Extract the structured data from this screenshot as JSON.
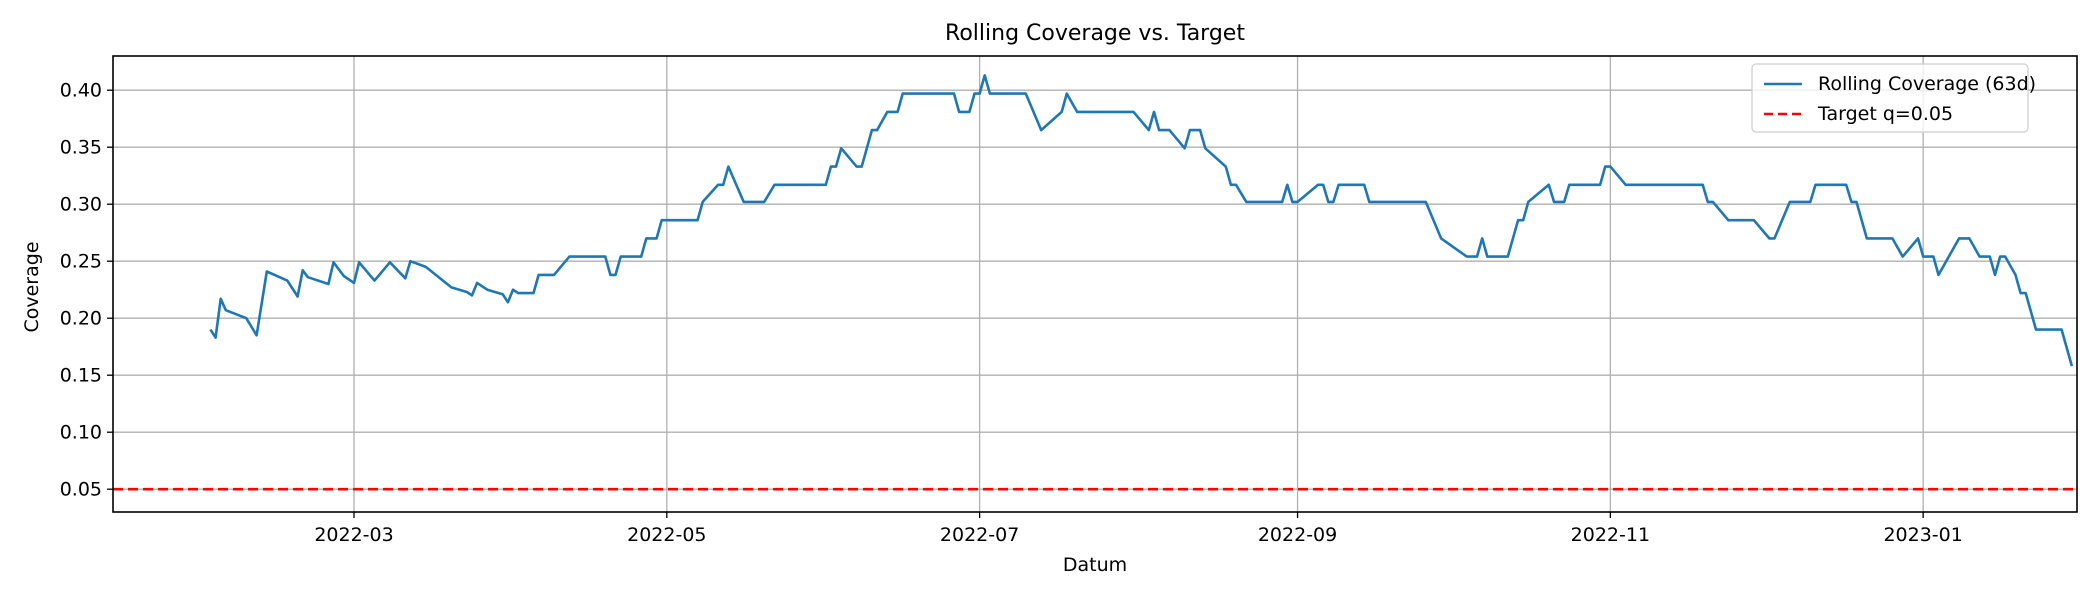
{
  "chart_data": {
    "type": "line",
    "title": "Rolling Coverage vs. Target",
    "xlabel": "Datum",
    "ylabel": "Coverage",
    "xlim": [
      "2022-01-13",
      "2023-01-31"
    ],
    "ylim": [
      0.03,
      0.43
    ],
    "xticks": [
      "2022-03-01",
      "2022-05-01",
      "2022-07-01",
      "2022-09-01",
      "2022-11-01",
      "2023-01-01"
    ],
    "xtick_labels": [
      "2022-03",
      "2022-05",
      "2022-07",
      "2022-09",
      "2022-11",
      "2023-01"
    ],
    "yticks": [
      0.05,
      0.1,
      0.15,
      0.2,
      0.25,
      0.3,
      0.35,
      0.4
    ],
    "ytick_labels": [
      "0.05",
      "0.10",
      "0.15",
      "0.20",
      "0.25",
      "0.30",
      "0.35",
      "0.40"
    ],
    "grid": true,
    "legend_position": "top-right",
    "series": [
      {
        "name": "Rolling Coverage (63d)",
        "color": "#1f77b4",
        "style": "solid",
        "points": [
          [
            "2022-02-01",
            0.19
          ],
          [
            "2022-02-02",
            0.183
          ],
          [
            "2022-02-03",
            0.217
          ],
          [
            "2022-02-04",
            0.207
          ],
          [
            "2022-02-08",
            0.2
          ],
          [
            "2022-02-10",
            0.185
          ],
          [
            "2022-02-12",
            0.241
          ],
          [
            "2022-02-16",
            0.233
          ],
          [
            "2022-02-18",
            0.219
          ],
          [
            "2022-02-19",
            0.242
          ],
          [
            "2022-02-20",
            0.236
          ],
          [
            "2022-02-24",
            0.23
          ],
          [
            "2022-02-25",
            0.249
          ],
          [
            "2022-02-27",
            0.237
          ],
          [
            "2022-03-01",
            0.231
          ],
          [
            "2022-03-02",
            0.249
          ],
          [
            "2022-03-05",
            0.233
          ],
          [
            "2022-03-08",
            0.249
          ],
          [
            "2022-03-11",
            0.235
          ],
          [
            "2022-03-12",
            0.25
          ],
          [
            "2022-03-15",
            0.245
          ],
          [
            "2022-03-20",
            0.227
          ],
          [
            "2022-03-23",
            0.223
          ],
          [
            "2022-03-24",
            0.22
          ],
          [
            "2022-03-25",
            0.231
          ],
          [
            "2022-03-27",
            0.225
          ],
          [
            "2022-03-30",
            0.221
          ],
          [
            "2022-03-31",
            0.214
          ],
          [
            "2022-04-01",
            0.225
          ],
          [
            "2022-04-02",
            0.222
          ],
          [
            "2022-04-05",
            0.222
          ],
          [
            "2022-04-06",
            0.238
          ],
          [
            "2022-04-09",
            0.238
          ],
          [
            "2022-04-12",
            0.254
          ],
          [
            "2022-04-19",
            0.254
          ],
          [
            "2022-04-20",
            0.238
          ],
          [
            "2022-04-21",
            0.238
          ],
          [
            "2022-04-22",
            0.254
          ],
          [
            "2022-04-26",
            0.254
          ],
          [
            "2022-04-27",
            0.27
          ],
          [
            "2022-04-29",
            0.27
          ],
          [
            "2022-04-30",
            0.286
          ],
          [
            "2022-05-07",
            0.286
          ],
          [
            "2022-05-08",
            0.302
          ],
          [
            "2022-05-11",
            0.317
          ],
          [
            "2022-05-12",
            0.317
          ],
          [
            "2022-05-13",
            0.333
          ],
          [
            "2022-05-16",
            0.302
          ],
          [
            "2022-05-20",
            0.302
          ],
          [
            "2022-05-22",
            0.317
          ],
          [
            "2022-05-31",
            0.317
          ],
          [
            "2022-06-01",
            0.317
          ],
          [
            "2022-06-02",
            0.333
          ],
          [
            "2022-06-03",
            0.333
          ],
          [
            "2022-06-04",
            0.349
          ],
          [
            "2022-06-07",
            0.333
          ],
          [
            "2022-06-08",
            0.333
          ],
          [
            "2022-06-10",
            0.365
          ],
          [
            "2022-06-11",
            0.365
          ],
          [
            "2022-06-13",
            0.381
          ],
          [
            "2022-06-15",
            0.381
          ],
          [
            "2022-06-16",
            0.397
          ],
          [
            "2022-06-26",
            0.397
          ],
          [
            "2022-06-27",
            0.381
          ],
          [
            "2022-06-29",
            0.381
          ],
          [
            "2022-06-30",
            0.397
          ],
          [
            "2022-07-01",
            0.397
          ],
          [
            "2022-07-02",
            0.413
          ],
          [
            "2022-07-03",
            0.397
          ],
          [
            "2022-07-10",
            0.397
          ],
          [
            "2022-07-13",
            0.365
          ],
          [
            "2022-07-17",
            0.381
          ],
          [
            "2022-07-18",
            0.397
          ],
          [
            "2022-07-20",
            0.381
          ],
          [
            "2022-07-31",
            0.381
          ],
          [
            "2022-08-03",
            0.365
          ],
          [
            "2022-08-04",
            0.381
          ],
          [
            "2022-08-05",
            0.365
          ],
          [
            "2022-08-07",
            0.365
          ],
          [
            "2022-08-10",
            0.349
          ],
          [
            "2022-08-11",
            0.365
          ],
          [
            "2022-08-13",
            0.365
          ],
          [
            "2022-08-14",
            0.349
          ],
          [
            "2022-08-18",
            0.333
          ],
          [
            "2022-08-19",
            0.317
          ],
          [
            "2022-08-20",
            0.317
          ],
          [
            "2022-08-22",
            0.302
          ],
          [
            "2022-08-29",
            0.302
          ],
          [
            "2022-08-30",
            0.317
          ],
          [
            "2022-08-31",
            0.302
          ],
          [
            "2022-09-01",
            0.302
          ],
          [
            "2022-09-05",
            0.317
          ],
          [
            "2022-09-06",
            0.317
          ],
          [
            "2022-09-07",
            0.302
          ],
          [
            "2022-09-08",
            0.302
          ],
          [
            "2022-09-09",
            0.317
          ],
          [
            "2022-09-14",
            0.317
          ],
          [
            "2022-09-15",
            0.302
          ],
          [
            "2022-09-26",
            0.302
          ],
          [
            "2022-09-29",
            0.27
          ],
          [
            "2022-10-04",
            0.254
          ],
          [
            "2022-10-06",
            0.254
          ],
          [
            "2022-10-07",
            0.27
          ],
          [
            "2022-10-08",
            0.254
          ],
          [
            "2022-10-12",
            0.254
          ],
          [
            "2022-10-14",
            0.286
          ],
          [
            "2022-10-15",
            0.286
          ],
          [
            "2022-10-16",
            0.302
          ],
          [
            "2022-10-20",
            0.317
          ],
          [
            "2022-10-21",
            0.302
          ],
          [
            "2022-10-23",
            0.302
          ],
          [
            "2022-10-24",
            0.317
          ],
          [
            "2022-10-30",
            0.317
          ],
          [
            "2022-10-31",
            0.333
          ],
          [
            "2022-11-01",
            0.333
          ],
          [
            "2022-11-04",
            0.317
          ],
          [
            "2022-11-19",
            0.317
          ],
          [
            "2022-11-20",
            0.302
          ],
          [
            "2022-11-21",
            0.302
          ],
          [
            "2022-11-24",
            0.286
          ],
          [
            "2022-11-29",
            0.286
          ],
          [
            "2022-12-02",
            0.27
          ],
          [
            "2022-12-03",
            0.27
          ],
          [
            "2022-12-06",
            0.302
          ],
          [
            "2022-12-10",
            0.302
          ],
          [
            "2022-12-11",
            0.317
          ],
          [
            "2022-12-17",
            0.317
          ],
          [
            "2022-12-18",
            0.302
          ],
          [
            "2022-12-19",
            0.302
          ],
          [
            "2022-12-21",
            0.27
          ],
          [
            "2022-12-26",
            0.27
          ],
          [
            "2022-12-28",
            0.254
          ],
          [
            "2022-12-31",
            0.27
          ],
          [
            "2023-01-01",
            0.254
          ],
          [
            "2023-01-03",
            0.254
          ],
          [
            "2023-01-04",
            0.238
          ],
          [
            "2023-01-06",
            0.254
          ],
          [
            "2023-01-08",
            0.27
          ],
          [
            "2023-01-10",
            0.27
          ],
          [
            "2023-01-12",
            0.254
          ],
          [
            "2023-01-14",
            0.254
          ],
          [
            "2023-01-15",
            0.238
          ],
          [
            "2023-01-16",
            0.254
          ],
          [
            "2023-01-17",
            0.254
          ],
          [
            "2023-01-19",
            0.238
          ],
          [
            "2023-01-20",
            0.222
          ],
          [
            "2023-01-21",
            0.222
          ],
          [
            "2023-01-23",
            0.19
          ],
          [
            "2023-01-27",
            0.19
          ],
          [
            "2023-01-28",
            0.19
          ],
          [
            "2023-01-30",
            0.158
          ]
        ]
      },
      {
        "name": "Target q=0.05",
        "color": "#ff0000",
        "style": "dashed",
        "hline": 0.05
      }
    ]
  }
}
